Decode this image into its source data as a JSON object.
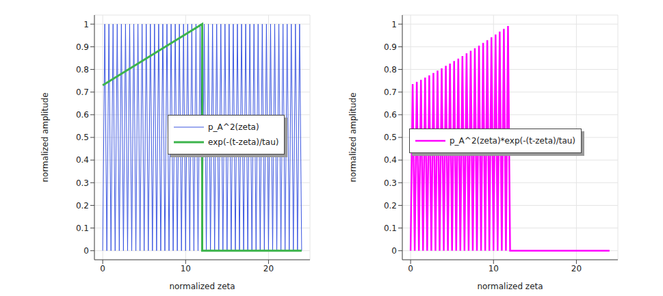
{
  "chart_data": [
    {
      "type": "line",
      "x_label": "normalized zeta",
      "y_label": "normalized amplitude",
      "xlim": [
        -1,
        25
      ],
      "ylim": [
        -0.04,
        1.04
      ],
      "xticks": [
        0,
        10,
        20
      ],
      "yticks": [
        0,
        0.1,
        0.2,
        0.3,
        0.4,
        0.5,
        0.6,
        0.7,
        0.8,
        0.9,
        1
      ],
      "grid": true,
      "legend": "right",
      "series": [
        {
          "name": "p_A^2(zeta)",
          "color": "#3a55e0",
          "x": [
            0,
            0.25,
            0.5,
            0.75,
            1,
            1.25,
            1.5,
            1.75,
            2,
            2.25,
            2.5,
            2.75,
            3,
            3.25,
            3.5,
            3.75,
            4,
            4.25,
            4.5,
            4.75,
            5,
            5.25,
            5.5,
            5.75,
            6,
            6.25,
            6.5,
            6.75,
            7,
            7.25,
            7.5,
            7.75,
            8,
            8.25,
            8.5,
            8.75,
            9,
            9.25,
            9.5,
            9.75,
            10,
            10.25,
            10.5,
            10.75,
            11,
            11.25,
            11.5,
            11.75,
            12,
            12.25,
            12.5,
            12.75,
            13,
            13.25,
            13.5,
            13.75,
            14,
            14.25,
            14.5,
            14.75,
            15,
            15.25,
            15.5,
            15.75,
            16,
            16.25,
            16.5,
            16.75,
            17,
            17.25,
            17.5,
            17.75,
            18,
            18.25,
            18.5,
            18.75,
            19,
            19.25,
            19.5,
            19.75,
            20,
            20.25,
            20.5,
            20.75,
            21,
            21.25,
            21.5,
            21.75,
            22,
            22.25,
            22.5,
            22.75,
            23,
            23.25,
            23.5,
            23.75,
            24
          ],
          "values": [
            0,
            1,
            0,
            1,
            0,
            1,
            0,
            1,
            0,
            1,
            0,
            1,
            0,
            1,
            0,
            1,
            0,
            1,
            0,
            1,
            0,
            1,
            0,
            1,
            0,
            1,
            0,
            1,
            0,
            1,
            0,
            1,
            0,
            1,
            0,
            1,
            0,
            1,
            0,
            1,
            0,
            1,
            0,
            1,
            0,
            1,
            0,
            1,
            0,
            1,
            0,
            1,
            0,
            1,
            0,
            1,
            0,
            1,
            0,
            1,
            0,
            1,
            0,
            1,
            0,
            1,
            0,
            1,
            0,
            1,
            0,
            1,
            0,
            1,
            0,
            1,
            0,
            1,
            0,
            1,
            0,
            1,
            0,
            1,
            0,
            1,
            0,
            1,
            0,
            1,
            0,
            1,
            0,
            1,
            0,
            1,
            0
          ]
        },
        {
          "name": "exp(-(t-zeta)/tau)",
          "color": "#3cb44b",
          "x": [
            0,
            12,
            12,
            24
          ],
          "values": [
            0.73,
            1,
            0,
            0
          ]
        }
      ]
    },
    {
      "type": "line",
      "x_label": "normalized zeta",
      "y_label": "normalized amplitude",
      "xlim": [
        -1,
        25
      ],
      "ylim": [
        -0.04,
        1.04
      ],
      "xticks": [
        0,
        10,
        20
      ],
      "yticks": [
        0,
        0.1,
        0.2,
        0.3,
        0.4,
        0.5,
        0.6,
        0.7,
        0.8,
        0.9,
        1
      ],
      "grid": true,
      "legend": "center",
      "series": [
        {
          "name": "p_A^2(zeta)*exp(-(t-zeta)/tau)",
          "color": "#ff00ff",
          "x": [
            0,
            0.25,
            0.5,
            0.75,
            1,
            1.25,
            1.5,
            1.75,
            2,
            2.25,
            2.5,
            2.75,
            3,
            3.25,
            3.5,
            3.75,
            4,
            4.25,
            4.5,
            4.75,
            5,
            5.25,
            5.5,
            5.75,
            6,
            6.25,
            6.5,
            6.75,
            7,
            7.25,
            7.5,
            7.75,
            8,
            8.25,
            8.5,
            8.75,
            9,
            9.25,
            9.5,
            9.75,
            10,
            10.25,
            10.5,
            10.75,
            11,
            11.25,
            11.5,
            11.75,
            12,
            24
          ],
          "values": [
            0,
            0.735,
            0,
            0.745,
            0,
            0.754,
            0,
            0.764,
            0,
            0.774,
            0,
            0.784,
            0,
            0.795,
            0,
            0.805,
            0,
            0.816,
            0,
            0.826,
            0,
            0.837,
            0,
            0.848,
            0,
            0.859,
            0,
            0.871,
            0,
            0.882,
            0,
            0.894,
            0,
            0.905,
            0,
            0.917,
            0,
            0.929,
            0,
            0.942,
            0,
            0.954,
            0,
            0.967,
            0,
            0.979,
            0,
            0.992,
            0,
            0
          ]
        }
      ]
    }
  ]
}
